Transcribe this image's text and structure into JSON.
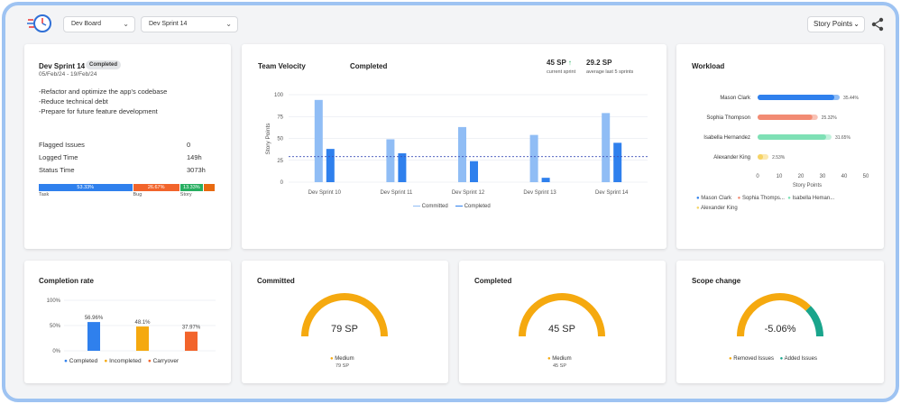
{
  "header": {
    "board_select": "Dev Board",
    "sprint_select": "Dev Sprint 14",
    "metric_select": "Story Points"
  },
  "sprint_card": {
    "title": "Dev Sprint 14",
    "badge": "Completed",
    "dates": "05/Feb/24 - 19/Feb/24",
    "goals": [
      "-Refactor and optimize the app's codebase",
      "-Reduce technical debt",
      "-Prepare for future feature development"
    ],
    "stats": [
      {
        "label": "Flagged Issues",
        "value": "0"
      },
      {
        "label": "Logged Time",
        "value": "149h"
      },
      {
        "label": "Status Time",
        "value": "3073h"
      }
    ],
    "breakdown": [
      {
        "label": "Task",
        "pct_text": "53.33%",
        "pct": 53.33,
        "color": "#2f80ed"
      },
      {
        "label": "Bug",
        "pct_text": "26.67%",
        "pct": 26.67,
        "color": "#f2642b"
      },
      {
        "label": "Story",
        "pct_text": "13.33%",
        "pct": 13.33,
        "color": "#27ae60"
      },
      {
        "label": "",
        "pct_text": "",
        "pct": 6.67,
        "color": "#e86a10"
      }
    ]
  },
  "velocity": {
    "title": "Team Velocity",
    "subtitle": "Completed",
    "current_value": "45 SP",
    "current_arrow": "↑",
    "current_label": "current sprint",
    "avg_value": "29.2 SP",
    "avg_label": "average last 5 sprints",
    "legend_committed": "Committed",
    "legend_completed": "Completed"
  },
  "workload": {
    "title": "Workload",
    "xlabel": "Story Points",
    "legend": [
      "Mason Clark",
      "Sophia Thomps...",
      "Isabella Heman...",
      "Alexander King"
    ]
  },
  "completion": {
    "title": "Completion rate",
    "legend": [
      "Completed",
      "Incompleted",
      "Carryover"
    ]
  },
  "committed_card": {
    "title": "Committed",
    "center": "79 SP",
    "legend": "Medium",
    "legend_value": "79 SP"
  },
  "completed_card": {
    "title": "Completed",
    "center": "45 SP",
    "legend": "Medium",
    "legend_value": "45 SP"
  },
  "scope_card": {
    "title": "Scope change",
    "center": "-5.06%",
    "legend_removed": "Removed Issues",
    "legend_added": "Added Issues"
  },
  "colors": {
    "blue": "#2f80ed",
    "lightblue": "#90bdf5",
    "orange": "#f5a90f",
    "red": "#f2642b",
    "teal": "#1aa58c",
    "salmon": "#f28b73",
    "mint": "#7ee0b5",
    "yellow": "#f6d365"
  },
  "chart_data": [
    {
      "type": "bar",
      "title": "Team Velocity",
      "categories": [
        "Dev Sprint 10",
        "Dev Sprint 11",
        "Dev Sprint 12",
        "Dev Sprint 13",
        "Dev Sprint 14"
      ],
      "series": [
        {
          "name": "Committed",
          "values": [
            94,
            49,
            63,
            54,
            79
          ]
        },
        {
          "name": "Completed",
          "values": [
            38,
            33,
            24,
            5,
            45
          ]
        }
      ],
      "average": 29.2,
      "ylabel": "Story Points",
      "ylim": [
        0,
        100
      ],
      "yticks": [
        0,
        25,
        50,
        75,
        100
      ]
    },
    {
      "type": "bar",
      "title": "Workload",
      "orientation": "horizontal",
      "categories": [
        "Mason Clark",
        "Sophia Thompson",
        "Isabella Hernandez",
        "Alexander King"
      ],
      "values": [
        35.44,
        25.32,
        31.65,
        2.53
      ],
      "labels": [
        "35.44%",
        "25.32%",
        "31.65%",
        "2.53%"
      ],
      "xlabel": "Story Points",
      "xlim": [
        0,
        50
      ],
      "xticks": [
        0,
        10,
        20,
        30,
        40,
        50
      ]
    },
    {
      "type": "bar",
      "title": "Completion rate",
      "categories": [
        "Completed",
        "Incompleted",
        "Carryover"
      ],
      "values": [
        56.96,
        48.1,
        37.97
      ],
      "labels": [
        "56.96%",
        "48.1%",
        "37.97%"
      ],
      "ylim": [
        0,
        100
      ],
      "yticks": [
        "0%",
        "50%",
        "100%"
      ]
    },
    {
      "type": "pie",
      "title": "Committed",
      "slices": [
        {
          "name": "Medium",
          "value": 79
        }
      ]
    },
    {
      "type": "pie",
      "title": "Completed",
      "slices": [
        {
          "name": "Medium",
          "value": 45
        }
      ]
    },
    {
      "type": "pie",
      "title": "Scope change",
      "slices": [
        {
          "name": "Removed Issues",
          "value": 75
        },
        {
          "name": "Added Issues",
          "value": 25
        }
      ]
    }
  ]
}
